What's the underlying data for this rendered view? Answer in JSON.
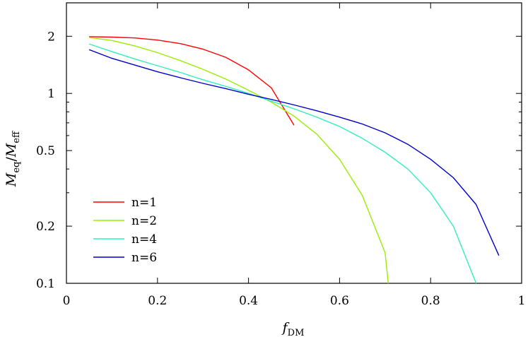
{
  "chart_data": {
    "type": "line",
    "title": "",
    "xlabel": {
      "main": "f",
      "sub": "DM"
    },
    "ylabel": {
      "main1": "M",
      "sub1": "eq",
      "sep": "/",
      "main2": "M",
      "sub2": "eff"
    },
    "xlim": [
      0,
      1
    ],
    "ylim": [
      0.1,
      3
    ],
    "yscale": "log",
    "grid": false,
    "legend_position": "bottom-left",
    "xticks": [
      {
        "value": 0,
        "label": "0"
      },
      {
        "value": 0.2,
        "label": "0.2"
      },
      {
        "value": 0.4,
        "label": "0.4"
      },
      {
        "value": 0.6,
        "label": "0.6"
      },
      {
        "value": 0.8,
        "label": "0.8"
      },
      {
        "value": 1,
        "label": "1"
      }
    ],
    "yticks": [
      {
        "value": 0.1,
        "label": "0.1"
      },
      {
        "value": 0.2,
        "label": "0.2"
      },
      {
        "value": 0.5,
        "label": "0.5"
      },
      {
        "value": 1,
        "label": "1"
      },
      {
        "value": 2,
        "label": "2"
      }
    ],
    "series": [
      {
        "name": "n=1",
        "color": "#ff0000",
        "x": [
          0.05,
          0.1,
          0.15,
          0.2,
          0.25,
          0.3,
          0.35,
          0.4,
          0.45,
          0.5
        ],
        "y": [
          1.99,
          1.98,
          1.96,
          1.91,
          1.83,
          1.71,
          1.55,
          1.33,
          1.07,
          0.68
        ]
      },
      {
        "name": "n=2",
        "color": "#99ee00",
        "x": [
          0.05,
          0.1,
          0.15,
          0.2,
          0.25,
          0.3,
          0.35,
          0.4,
          0.45,
          0.5,
          0.55,
          0.6,
          0.65,
          0.7,
          0.707
        ],
        "y": [
          1.97,
          1.9,
          1.78,
          1.64,
          1.49,
          1.34,
          1.19,
          1.04,
          0.9,
          0.76,
          0.61,
          0.45,
          0.29,
          0.145,
          0.1
        ]
      },
      {
        "name": "n=4",
        "color": "#33eebb",
        "x": [
          0.05,
          0.1,
          0.15,
          0.2,
          0.25,
          0.3,
          0.35,
          0.4,
          0.45,
          0.5,
          0.55,
          0.6,
          0.65,
          0.7,
          0.75,
          0.8,
          0.85,
          0.9
        ],
        "y": [
          1.82,
          1.66,
          1.52,
          1.4,
          1.29,
          1.18,
          1.09,
          1.0,
          0.91,
          0.83,
          0.75,
          0.67,
          0.58,
          0.49,
          0.4,
          0.3,
          0.2,
          0.1
        ]
      },
      {
        "name": "n=6",
        "color": "#0000cc",
        "x": [
          0.05,
          0.1,
          0.15,
          0.2,
          0.25,
          0.3,
          0.35,
          0.4,
          0.45,
          0.5,
          0.55,
          0.6,
          0.65,
          0.7,
          0.75,
          0.8,
          0.85,
          0.9,
          0.95
        ],
        "y": [
          1.7,
          1.53,
          1.41,
          1.3,
          1.21,
          1.13,
          1.06,
          0.99,
          0.93,
          0.87,
          0.81,
          0.75,
          0.69,
          0.62,
          0.54,
          0.45,
          0.36,
          0.26,
          0.14
        ]
      }
    ]
  }
}
